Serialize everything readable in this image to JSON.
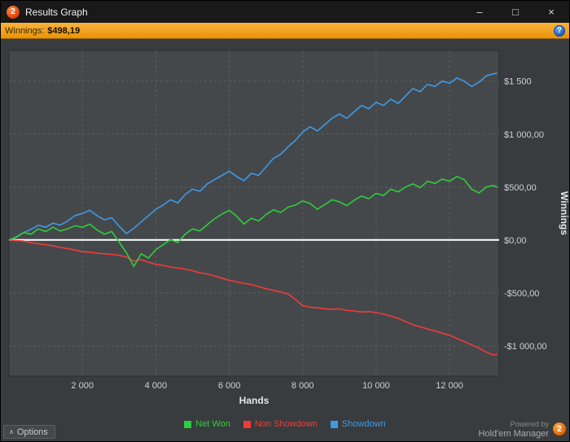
{
  "window": {
    "title": "Results Graph",
    "icons": {
      "app": "2",
      "minimize": "–",
      "maximize": "□",
      "close": "×"
    }
  },
  "winnings_bar": {
    "label": "Winnings:",
    "value": "$498,19",
    "help_icon": "?"
  },
  "colors": {
    "accent_orange": "#f0a21c",
    "plot_bg": "#45484a",
    "grid": "#5a5e61",
    "zero_line": "#ffffff",
    "net_won": "#2fcc3f",
    "non_showdown": "#ef3b3b",
    "showdown": "#3d9ae8"
  },
  "chart_data": {
    "type": "line",
    "title": "Results Graph",
    "xlabel": "Hands",
    "ylabel": "Winnings",
    "grid": "dashed",
    "legend_position": "bottom",
    "zero_line": true,
    "xlim": [
      0,
      13350
    ],
    "ylim": [
      -1285,
      1790
    ],
    "x_ticks": [
      {
        "v": 2000,
        "label": "2 000"
      },
      {
        "v": 4000,
        "label": "4 000"
      },
      {
        "v": 6000,
        "label": "6 000"
      },
      {
        "v": 8000,
        "label": "8 000"
      },
      {
        "v": 10000,
        "label": "10 000"
      },
      {
        "v": 12000,
        "label": "12 000"
      }
    ],
    "y_ticks": [
      {
        "v": 1500,
        "label": "$1 500"
      },
      {
        "v": 1000,
        "label": "$1 000,00"
      },
      {
        "v": 500,
        "label": "$500,00"
      },
      {
        "v": 0,
        "label": "$0,00"
      },
      {
        "v": -500,
        "label": "-$500,00"
      },
      {
        "v": -1000,
        "label": "-$1 000,00"
      }
    ],
    "x": [
      0,
      200,
      400,
      600,
      800,
      1000,
      1200,
      1400,
      1600,
      1800,
      2000,
      2200,
      2400,
      2600,
      2800,
      3000,
      3200,
      3400,
      3600,
      3800,
      4000,
      4200,
      4400,
      4600,
      4800,
      5000,
      5200,
      5400,
      5600,
      5800,
      6000,
      6200,
      6400,
      6600,
      6800,
      7000,
      7200,
      7400,
      7600,
      7800,
      8000,
      8200,
      8400,
      8600,
      8800,
      9000,
      9200,
      9400,
      9600,
      9800,
      10000,
      10200,
      10400,
      10600,
      10800,
      11000,
      11200,
      11400,
      11600,
      11800,
      12000,
      12200,
      12400,
      12600,
      12800,
      13000,
      13200,
      13300
    ],
    "series": [
      {
        "name": "Net Won",
        "color": "#2fcc3f",
        "final_value": "$498,19",
        "values": [
          0,
          25,
          70,
          55,
          105,
          80,
          120,
          85,
          105,
          135,
          120,
          150,
          95,
          55,
          80,
          -20,
          -120,
          -250,
          -130,
          -170,
          -90,
          -45,
          5,
          -25,
          55,
          105,
          85,
          145,
          200,
          245,
          280,
          225,
          150,
          205,
          180,
          240,
          285,
          260,
          310,
          330,
          370,
          345,
          290,
          335,
          380,
          360,
          325,
          375,
          415,
          390,
          440,
          420,
          480,
          455,
          500,
          530,
          495,
          555,
          535,
          575,
          555,
          600,
          570,
          480,
          445,
          500,
          515,
          498
        ]
      },
      {
        "name": "Non Showdown",
        "color": "#ef3b3b",
        "values": [
          0,
          -5,
          -10,
          -25,
          -35,
          -45,
          -55,
          -70,
          -80,
          -95,
          -110,
          -115,
          -125,
          -130,
          -135,
          -145,
          -160,
          -200,
          -185,
          -210,
          -230,
          -240,
          -255,
          -265,
          -275,
          -290,
          -310,
          -320,
          -340,
          -360,
          -380,
          -395,
          -410,
          -420,
          -440,
          -460,
          -475,
          -490,
          -510,
          -560,
          -620,
          -635,
          -640,
          -650,
          -655,
          -650,
          -665,
          -670,
          -680,
          -675,
          -685,
          -700,
          -720,
          -740,
          -770,
          -800,
          -820,
          -840,
          -860,
          -880,
          -900,
          -930,
          -960,
          -990,
          -1020,
          -1060,
          -1085,
          -1080
        ]
      },
      {
        "name": "Showdown",
        "color": "#3d9ae8",
        "values": [
          0,
          30,
          70,
          100,
          140,
          120,
          160,
          140,
          180,
          230,
          250,
          280,
          230,
          190,
          210,
          130,
          60,
          110,
          170,
          230,
          290,
          330,
          380,
          350,
          430,
          480,
          460,
          530,
          570,
          610,
          650,
          600,
          560,
          630,
          610,
          690,
          770,
          810,
          880,
          940,
          1020,
          1070,
          1030,
          1090,
          1150,
          1190,
          1150,
          1210,
          1270,
          1240,
          1300,
          1270,
          1330,
          1290,
          1360,
          1430,
          1400,
          1470,
          1450,
          1500,
          1480,
          1530,
          1500,
          1450,
          1490,
          1550,
          1570,
          1575
        ]
      }
    ]
  },
  "footer": {
    "options_label": "Options",
    "options_icon": "∧",
    "powered_by": "Powered by",
    "brand": "Hold'em Manager",
    "brand_logo": "2"
  }
}
